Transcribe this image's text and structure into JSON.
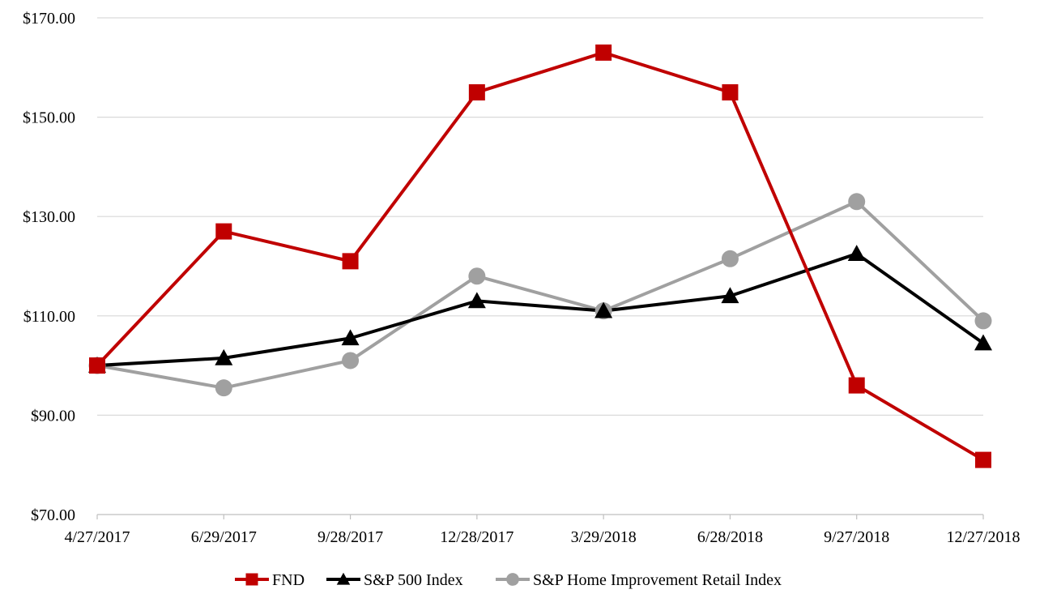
{
  "chart_data": {
    "type": "line",
    "title": "",
    "xlabel": "",
    "ylabel": "",
    "categories": [
      "4/27/2017",
      "6/29/2017",
      "9/28/2017",
      "12/28/2017",
      "3/29/2018",
      "6/28/2018",
      "9/27/2018",
      "12/27/2018"
    ],
    "ylim": [
      70,
      170
    ],
    "yticks": [
      70,
      90,
      110,
      130,
      150,
      170
    ],
    "ytick_labels": [
      "$70.00",
      "$90.00",
      "$110.00",
      "$130.00",
      "$150.00",
      "$170.00"
    ],
    "grid": true,
    "legend_position": "bottom",
    "series": [
      {
        "name": "FND",
        "color": "#c00000",
        "marker": "square",
        "values": [
          100,
          127,
          121,
          155,
          163,
          155,
          96,
          81
        ]
      },
      {
        "name": "S&P 500 Index",
        "color": "#000000",
        "marker": "triangle",
        "values": [
          100,
          101.5,
          105.5,
          113,
          111,
          114,
          122.5,
          104.5
        ]
      },
      {
        "name": "S&P Home Improvement Retail Index",
        "color": "#a0a0a0",
        "marker": "circle",
        "values": [
          100,
          95.5,
          101,
          118,
          111,
          121.5,
          133,
          109
        ]
      }
    ]
  }
}
